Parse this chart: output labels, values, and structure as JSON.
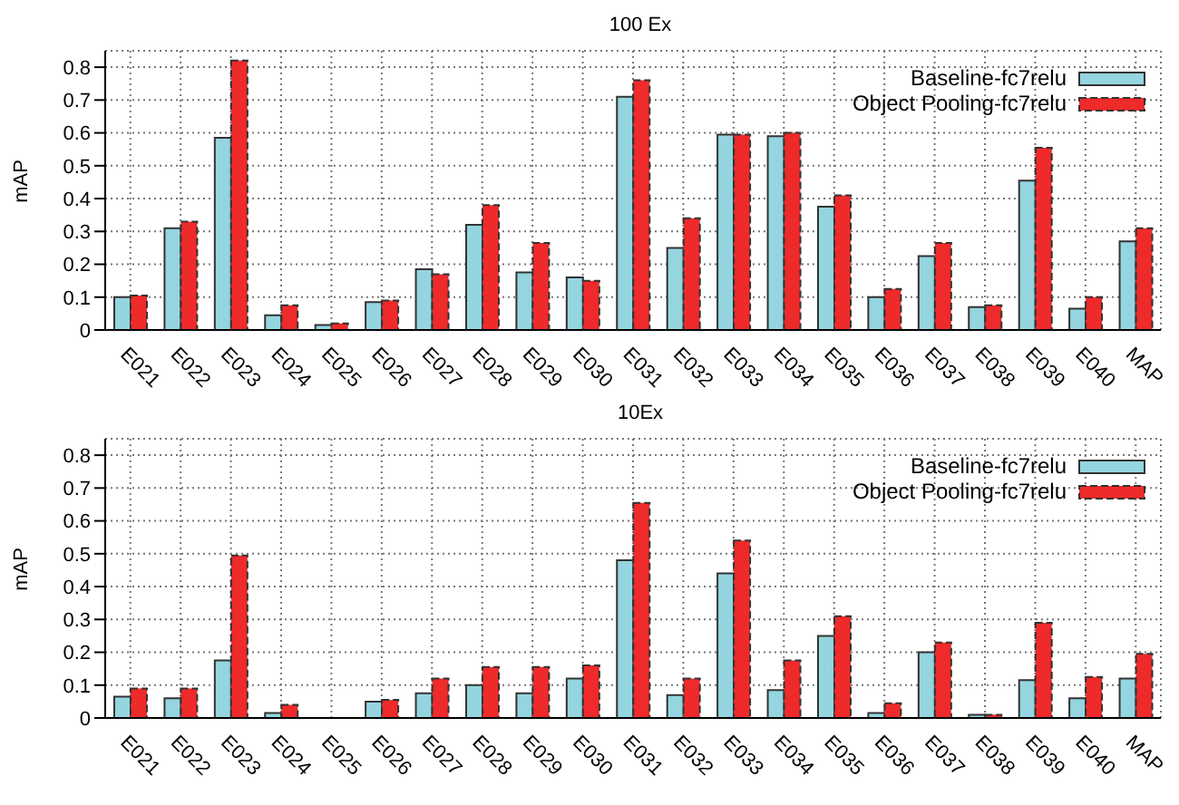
{
  "chart_data": [
    {
      "type": "bar",
      "title": "100 Ex",
      "ylabel": "mAP",
      "categories": [
        "E021",
        "E022",
        "E023",
        "E024",
        "E025",
        "E026",
        "E027",
        "E028",
        "E029",
        "E030",
        "E031",
        "E032",
        "E033",
        "E034",
        "E035",
        "E036",
        "E037",
        "E038",
        "E039",
        "E040",
        "MAP"
      ],
      "series": [
        {
          "name": "Baseline-fc7relu",
          "color": "#94d5df",
          "values": [
            0.1,
            0.31,
            0.585,
            0.045,
            0.015,
            0.085,
            0.185,
            0.32,
            0.175,
            0.16,
            0.71,
            0.25,
            0.595,
            0.59,
            0.375,
            0.1,
            0.225,
            0.07,
            0.455,
            0.065,
            0.27
          ]
        },
        {
          "name": "Object Pooling-fc7relu",
          "color": "#ee2a2a",
          "line_style": "dashed",
          "values": [
            0.105,
            0.33,
            0.82,
            0.075,
            0.02,
            0.09,
            0.17,
            0.38,
            0.265,
            0.15,
            0.76,
            0.34,
            0.595,
            0.6,
            0.41,
            0.125,
            0.265,
            0.075,
            0.555,
            0.1,
            0.31
          ]
        }
      ],
      "ylim": [
        0,
        0.85
      ],
      "yticks": [
        0,
        0.1,
        0.2,
        0.3,
        0.4,
        0.5,
        0.6,
        0.7,
        0.8
      ],
      "grid": true,
      "legend": "top right"
    },
    {
      "type": "bar",
      "title": "10Ex",
      "ylabel": "mAP",
      "categories": [
        "E021",
        "E022",
        "E023",
        "E024",
        "E025",
        "E026",
        "E027",
        "E028",
        "E029",
        "E030",
        "E031",
        "E032",
        "E033",
        "E034",
        "E035",
        "E036",
        "E037",
        "E038",
        "E039",
        "E040",
        "MAP"
      ],
      "series": [
        {
          "name": "Baseline-fc7relu",
          "color": "#94d5df",
          "values": [
            0.065,
            0.06,
            0.175,
            0.015,
            null,
            0.05,
            0.075,
            0.1,
            0.075,
            0.12,
            0.48,
            0.07,
            0.44,
            0.085,
            0.25,
            0.015,
            0.2,
            0.01,
            0.115,
            0.06,
            0.12
          ]
        },
        {
          "name": "Object Pooling-fc7relu",
          "color": "#ee2a2a",
          "line_style": "dashed",
          "values": [
            0.09,
            0.09,
            0.495,
            0.04,
            null,
            0.055,
            0.12,
            0.155,
            0.155,
            0.16,
            0.655,
            0.12,
            0.54,
            0.175,
            0.31,
            0.045,
            0.23,
            0.01,
            0.29,
            0.125,
            0.195
          ]
        }
      ],
      "ylim": [
        0,
        0.85
      ],
      "yticks": [
        0,
        0.1,
        0.2,
        0.3,
        0.4,
        0.5,
        0.6,
        0.7,
        0.8
      ],
      "grid": true,
      "legend": "top right"
    }
  ]
}
